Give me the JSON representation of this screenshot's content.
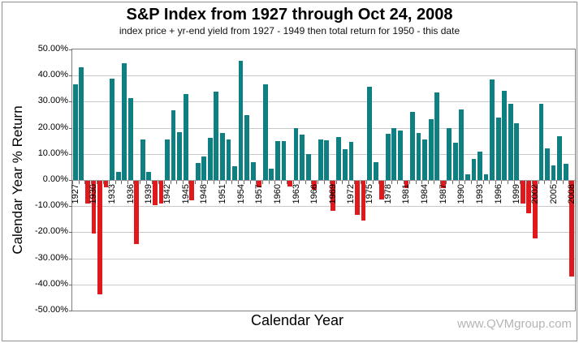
{
  "header": {
    "title": "S&P Index from 1927 through Oct 24, 2008",
    "subtitle": "index price + yr-end yield from 1927 - 1949 then total return for 1950 - this date"
  },
  "watermark": "www.QVMgroup.com",
  "colors": {
    "positive_bar": "#0e8081",
    "negative_bar": "#e0191c",
    "gridline": "#c9c9c9",
    "axis_line": "#7f7f7f",
    "watermark_text": "#b5b5b5"
  },
  "chart_data": {
    "type": "bar",
    "title": "S&P Index from 1927 through Oct 24, 2008",
    "subtitle": "index price + yr-end yield from 1927 - 1949 then total return for 1950 - this date",
    "xlabel": "Calendar Year",
    "ylabel": "Calendar Year % Return",
    "ylim": [
      -50,
      50
    ],
    "y_tick_labels": [
      "50.00%",
      "40.00%",
      "30.00%",
      "20.00%",
      "10.00%",
      "0.00%",
      "-10.00%",
      "-20.00%",
      "-30.00%",
      "-40.00%",
      "-50.00%"
    ],
    "x_tick_label_step": 3,
    "grid": true,
    "legend": "none",
    "categories": [
      1927,
      1928,
      1929,
      1930,
      1931,
      1932,
      1933,
      1934,
      1935,
      1936,
      1937,
      1938,
      1939,
      1940,
      1941,
      1942,
      1943,
      1944,
      1945,
      1946,
      1947,
      1948,
      1949,
      1950,
      1951,
      1952,
      1953,
      1954,
      1955,
      1956,
      1957,
      1958,
      1959,
      1960,
      1961,
      1962,
      1963,
      1964,
      1965,
      1966,
      1967,
      1968,
      1969,
      1970,
      1971,
      1972,
      1973,
      1974,
      1975,
      1976,
      1977,
      1978,
      1979,
      1980,
      1981,
      1982,
      1983,
      1984,
      1985,
      1986,
      1987,
      1988,
      1989,
      1990,
      1991,
      1992,
      1993,
      1994,
      1995,
      1996,
      1997,
      1998,
      1999,
      2000,
      2001,
      2002,
      2003,
      2004,
      2005,
      2006,
      2007,
      2008
    ],
    "series": [
      {
        "name": "S&P annual percent return",
        "values": [
          36.6,
          43.2,
          -8.6,
          -20.1,
          -43.4,
          -2.4,
          38.9,
          3.0,
          44.7,
          31.4,
          -24.1,
          15.4,
          3.2,
          -9.2,
          -8.8,
          15.6,
          26.6,
          18.2,
          32.9,
          -7.4,
          6.6,
          8.9,
          16.3,
          34.0,
          18.0,
          15.4,
          5.3,
          45.6,
          24.7,
          6.8,
          -2.5,
          36.8,
          4.5,
          14.8,
          14.8,
          -2.1,
          19.8,
          17.5,
          9.8,
          -3.5,
          15.5,
          15.3,
          -11.4,
          16.6,
          11.8,
          14.7,
          -13.0,
          -15.3,
          35.8,
          6.8,
          -7.0,
          17.7,
          20.0,
          18.8,
          -2.8,
          26.2,
          18.0,
          15.5,
          23.2,
          33.4,
          -2.8,
          19.8,
          14.4,
          27.0,
          2.2,
          8.1,
          10.8,
          2.3,
          38.5,
          23.8,
          34.2,
          29.2,
          21.6,
          -8.7,
          -12.3,
          -22.1,
          29.2,
          12.0,
          5.7,
          16.7,
          6.2,
          -36.7
        ]
      }
    ]
  }
}
